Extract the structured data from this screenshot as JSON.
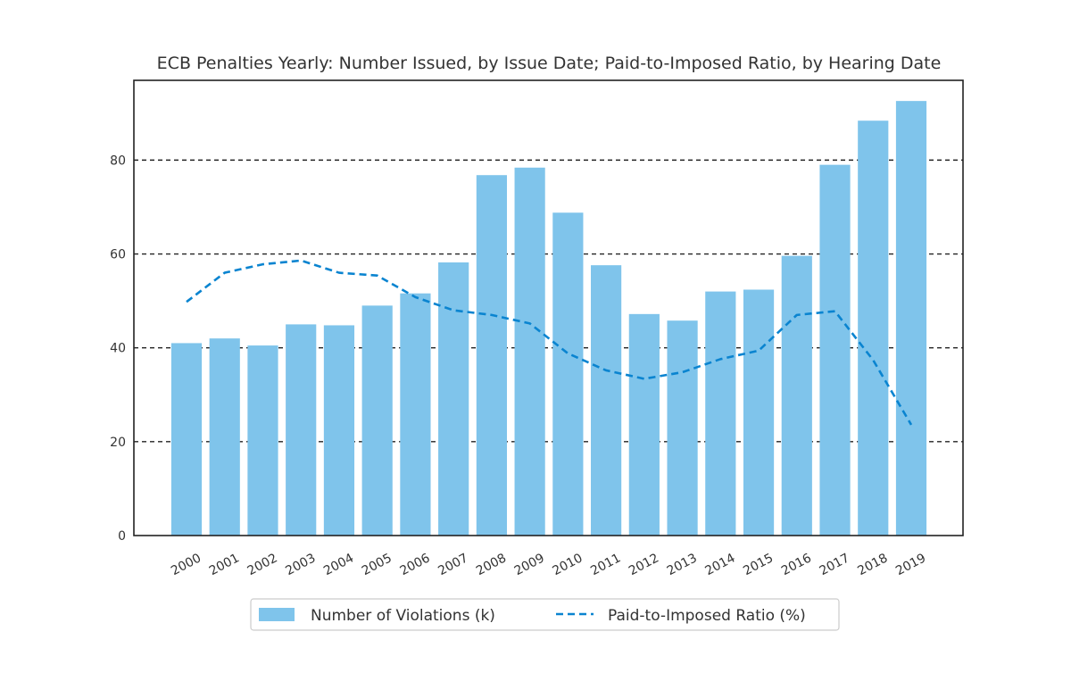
{
  "chart_data": {
    "type": "bar",
    "title": "ECB Penalties Yearly: Number Issued, by Issue Date; Paid-to-Imposed Ratio, by Hearing Date",
    "xlabel": "",
    "ylabel": "",
    "ylim": [
      0,
      97
    ],
    "yticks": [
      0,
      20,
      40,
      60,
      80
    ],
    "grid": "horizontal-dashed",
    "legend_placement": "bottom-center",
    "categories": [
      "2000",
      "2001",
      "2002",
      "2003",
      "2004",
      "2005",
      "2006",
      "2007",
      "2008",
      "2009",
      "2010",
      "2011",
      "2012",
      "2013",
      "2014",
      "2015",
      "2016",
      "2017",
      "2018",
      "2019"
    ],
    "series": [
      {
        "name": "Number of Violations (k)",
        "kind": "bar",
        "color": "#7fc4eb",
        "values": [
          41,
          42,
          40.5,
          45,
          44.8,
          49,
          51.6,
          58.2,
          76.8,
          78.4,
          68.8,
          57.6,
          47.2,
          45.8,
          52,
          52.4,
          59.6,
          79,
          88.4,
          92.6
        ]
      },
      {
        "name": "Paid-to-Imposed Ratio (%)",
        "kind": "line",
        "style": "dashed",
        "color": "#0a84d0",
        "values": [
          49.8,
          56,
          57.8,
          58.6,
          56,
          55.4,
          50.8,
          48,
          47,
          45.2,
          38.8,
          35.2,
          33.4,
          34.8,
          37.6,
          39.4,
          47,
          47.8,
          37.4,
          23.6
        ]
      }
    ]
  }
}
